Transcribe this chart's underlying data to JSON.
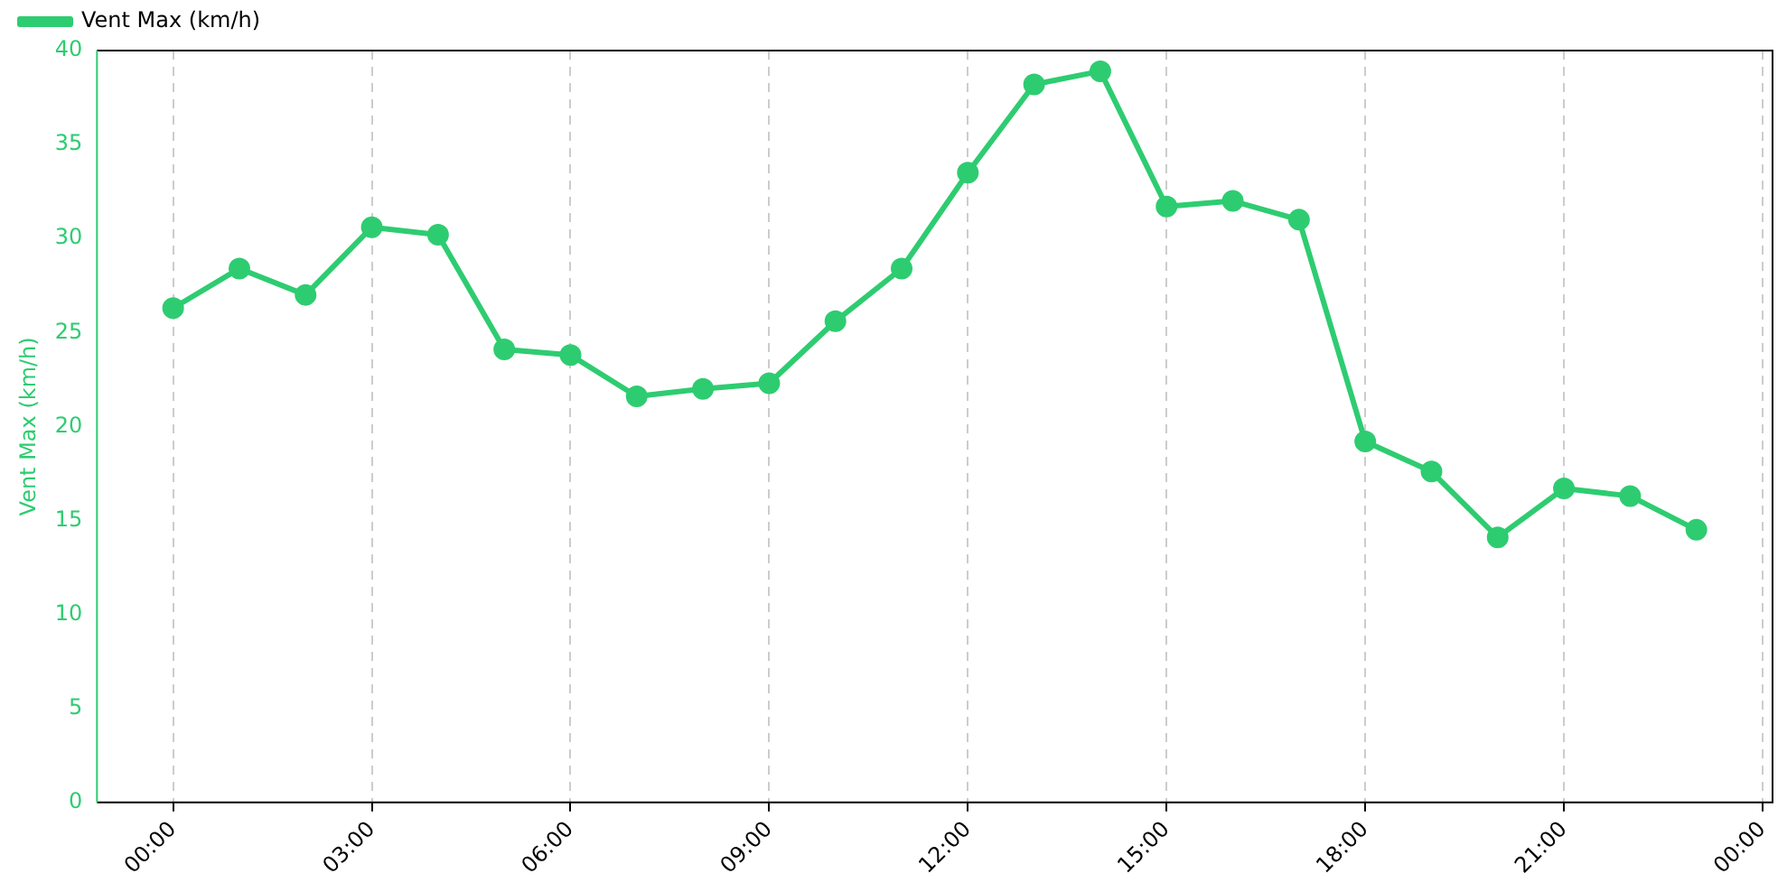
{
  "chart_data": {
    "type": "line",
    "ylabel": "Vent Max (km/h)",
    "x": [
      0,
      1,
      2,
      3,
      4,
      5,
      6,
      7,
      8,
      9,
      10,
      11,
      12,
      13,
      14,
      15,
      16,
      17,
      18,
      19,
      20,
      21,
      22,
      23
    ],
    "series": [
      {
        "name": "Vent Max (km/h)",
        "color": "#2ecc71",
        "values": [
          26.3,
          28.4,
          27.0,
          30.6,
          30.2,
          24.1,
          23.8,
          21.6,
          22.0,
          22.3,
          25.6,
          28.4,
          33.5,
          38.2,
          38.9,
          31.7,
          32.0,
          31.0,
          19.2,
          17.6,
          14.1,
          16.7,
          16.3,
          14.5
        ]
      }
    ],
    "xlim": [
      -1.15,
      24.15
    ],
    "xticks": [
      {
        "value": 0,
        "label": "00:00"
      },
      {
        "value": 3,
        "label": "03:00"
      },
      {
        "value": 6,
        "label": "06:00"
      },
      {
        "value": 9,
        "label": "09:00"
      },
      {
        "value": 12,
        "label": "12:00"
      },
      {
        "value": 15,
        "label": "15:00"
      },
      {
        "value": 18,
        "label": "18:00"
      },
      {
        "value": 21,
        "label": "21:00"
      },
      {
        "value": 24,
        "label": "00:00"
      }
    ],
    "ylim": [
      0,
      40
    ],
    "yticks": [
      0,
      5,
      10,
      15,
      20,
      25,
      30,
      35,
      40
    ],
    "grid": "x",
    "legend": "top left",
    "marker": "circle",
    "line_style": "solid"
  }
}
